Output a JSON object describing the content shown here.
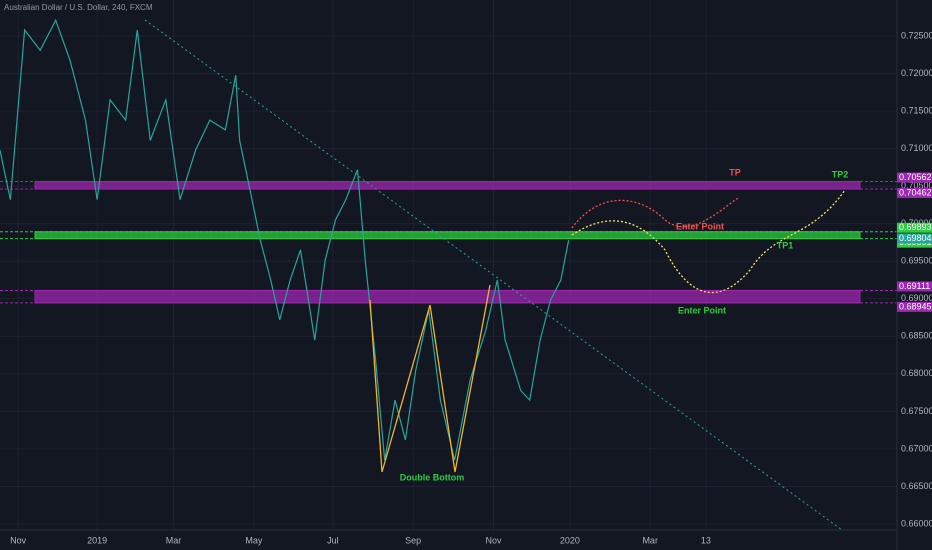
{
  "chart_data": {
    "type": "line",
    "title": "Australian Dollar / U.S. Dollar, 240, FXCM",
    "xlim": [
      -14,
      677
    ],
    "ylim": [
      0.6592,
      0.7298
    ],
    "grid": true,
    "xticks": [
      {
        "value": 0,
        "label": "Nov"
      },
      {
        "value": 61,
        "label": "2019"
      },
      {
        "value": 120,
        "label": "Mar"
      },
      {
        "value": 182,
        "label": "May"
      },
      {
        "value": 243,
        "label": "Jul"
      },
      {
        "value": 305,
        "label": "Sep"
      },
      {
        "value": 367,
        "label": "Nov"
      },
      {
        "value": 426,
        "label": "2020"
      },
      {
        "value": 488,
        "label": "Mar"
      },
      {
        "value": 531,
        "label": "13"
      }
    ],
    "yticks": [
      {
        "value": 0.66,
        "label": "0.66000"
      },
      {
        "value": 0.665,
        "label": "0.66500"
      },
      {
        "value": 0.67,
        "label": "0.67000"
      },
      {
        "value": 0.675,
        "label": "0.67500"
      },
      {
        "value": 0.68,
        "label": "0.68000"
      },
      {
        "value": 0.685,
        "label": "0.68500"
      },
      {
        "value": 0.69,
        "label": "0.69000"
      },
      {
        "value": 0.695,
        "label": "0.69500"
      },
      {
        "value": 0.7,
        "label": "0.70000"
      },
      {
        "value": 0.705,
        "label": "0.70500"
      },
      {
        "value": 0.71,
        "label": "0.71000"
      },
      {
        "value": 0.715,
        "label": "0.71500"
      },
      {
        "value": 0.72,
        "label": "0.72000"
      },
      {
        "value": 0.725,
        "label": "0.72500"
      }
    ],
    "series": [
      {
        "name": "AUDUSD",
        "color": "#26a69a",
        "x": [
          -14,
          -6,
          5,
          17,
          29,
          40,
          52,
          61,
          71,
          83,
          92,
          102,
          114,
          125,
          137,
          148,
          160,
          168,
          171,
          179,
          187,
          195,
          202,
          210,
          218,
          229,
          237,
          245,
          253,
          262,
          268,
          276,
          283,
          291,
          299,
          307,
          317,
          326,
          337,
          349,
          361,
          370,
          376,
          388,
          395,
          403,
          411,
          419,
          425
        ],
        "values": [
          0.7098,
          0.7032,
          0.7258,
          0.7231,
          0.7271,
          0.7218,
          0.7138,
          0.7032,
          0.7165,
          0.7138,
          0.7258,
          0.7111,
          0.7165,
          0.7032,
          0.7098,
          0.7138,
          0.7125,
          0.7198,
          0.7111,
          0.7045,
          0.6978,
          0.6925,
          0.6872,
          0.6925,
          0.6965,
          0.6845,
          0.6951,
          0.7005,
          0.7032,
          0.7072,
          0.6951,
          0.6818,
          0.6685,
          0.6765,
          0.6712,
          0.6805,
          0.6885,
          0.6765,
          0.6685,
          0.6792,
          0.6858,
          0.6925,
          0.6845,
          0.6778,
          0.6765,
          0.6845,
          0.6898,
          0.6925,
          0.6978
        ]
      }
    ],
    "zones": [
      {
        "values": [
          0.70562,
          0.70462
        ],
        "value_labels": [
          "0.70562",
          "0.70462"
        ],
        "color": "#9c27b0"
      },
      {
        "values": [
          0.69893,
          0.69801
        ],
        "value_labels": [
          "0.69893",
          "0.69801"
        ],
        "color": "#2ecc40"
      },
      {
        "values": [
          0.69111,
          0.68945
        ],
        "value_labels": [
          "0.69111",
          "0.68945"
        ],
        "color": "#9c27b0"
      }
    ],
    "last_price": {
      "value": 0.69804,
      "label": "0.69804",
      "color": "#26a69a"
    },
    "annotations": [
      {
        "text": "TP",
        "color": "#ef5350"
      },
      {
        "text": "TP2",
        "color": "#2ecc40"
      },
      {
        "text": "Enter Point",
        "color": "#ef5350"
      },
      {
        "text": "TP1",
        "color": "#2ecc40"
      },
      {
        "text": "Enter Point",
        "color": "#2ecc40"
      },
      {
        "text": "Double Bottom",
        "color": "#2ecc40"
      }
    ]
  }
}
